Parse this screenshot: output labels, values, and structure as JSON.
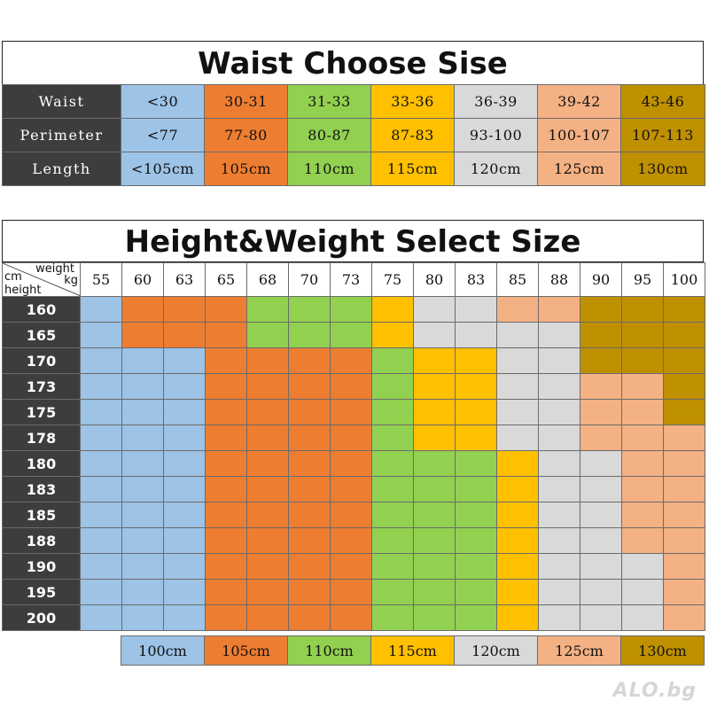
{
  "waist_section": {
    "title": "Waist Choose Sise",
    "rows": [
      {
        "label": "Waist",
        "values": [
          "<30",
          "30-31",
          "31-33",
          "33-36",
          "36-39",
          "39-42",
          "43-46"
        ]
      },
      {
        "label": "Perimeter",
        "values": [
          "<77",
          "77-80",
          "80-87",
          "87-83",
          "93-100",
          "100-107",
          "107-113"
        ]
      },
      {
        "label": "Length",
        "values": [
          "<105cm",
          "105cm",
          "110cm",
          "115cm",
          "120cm",
          "125cm",
          "130cm"
        ]
      }
    ],
    "column_colors": [
      "#9dc3e6",
      "#ed7d31",
      "#92d050",
      "#ffc000",
      "#d9d9d9",
      "#f4b183",
      "#bf9000"
    ]
  },
  "size_chart": {
    "title": "Height&Weight Select Size",
    "corner": {
      "weight_label": "weight",
      "kg_label": "kg",
      "cm_label": "cm",
      "height_label": "height"
    },
    "weights": [
      "55",
      "60",
      "63",
      "65",
      "68",
      "70",
      "73",
      "75",
      "80",
      "83",
      "85",
      "88",
      "90",
      "95",
      "100"
    ],
    "heights": [
      "160",
      "165",
      "170",
      "173",
      "175",
      "178",
      "180",
      "183",
      "185",
      "188",
      "190",
      "195",
      "200"
    ],
    "length_key": {
      "B": "100cm",
      "O": "105cm",
      "G": "110cm",
      "Y": "115cm",
      "W": "120cm",
      "P": "125cm",
      "K": "130cm"
    },
    "grid": [
      [
        "B",
        "O",
        "O",
        "O",
        "G",
        "G",
        "G",
        "Y",
        "W",
        "W",
        "P",
        "P",
        "K",
        "K",
        "K"
      ],
      [
        "B",
        "O",
        "O",
        "O",
        "G",
        "G",
        "G",
        "Y",
        "W",
        "W",
        "W",
        "W",
        "K",
        "K",
        "K"
      ],
      [
        "B",
        "B",
        "B",
        "O",
        "O",
        "O",
        "O",
        "G",
        "Y",
        "Y",
        "W",
        "W",
        "K",
        "K",
        "K"
      ],
      [
        "B",
        "B",
        "B",
        "O",
        "O",
        "O",
        "O",
        "G",
        "Y",
        "Y",
        "W",
        "W",
        "P",
        "P",
        "K"
      ],
      [
        "B",
        "B",
        "B",
        "O",
        "O",
        "O",
        "O",
        "G",
        "Y",
        "Y",
        "W",
        "W",
        "P",
        "P",
        "K"
      ],
      [
        "B",
        "B",
        "B",
        "O",
        "O",
        "O",
        "O",
        "G",
        "Y",
        "Y",
        "W",
        "W",
        "P",
        "P",
        "P"
      ],
      [
        "B",
        "B",
        "B",
        "O",
        "O",
        "O",
        "O",
        "G",
        "G",
        "G",
        "Y",
        "W",
        "W",
        "P",
        "P"
      ],
      [
        "B",
        "B",
        "B",
        "O",
        "O",
        "O",
        "O",
        "G",
        "G",
        "G",
        "Y",
        "W",
        "W",
        "P",
        "P"
      ],
      [
        "B",
        "B",
        "B",
        "O",
        "O",
        "O",
        "O",
        "G",
        "G",
        "G",
        "Y",
        "W",
        "W",
        "P",
        "P"
      ],
      [
        "B",
        "B",
        "B",
        "O",
        "O",
        "O",
        "O",
        "G",
        "G",
        "G",
        "Y",
        "W",
        "W",
        "P",
        "P"
      ],
      [
        "B",
        "B",
        "B",
        "O",
        "O",
        "O",
        "O",
        "G",
        "G",
        "G",
        "Y",
        "W",
        "W",
        "W",
        "P"
      ],
      [
        "B",
        "B",
        "B",
        "O",
        "O",
        "O",
        "O",
        "G",
        "G",
        "G",
        "Y",
        "W",
        "W",
        "W",
        "P"
      ],
      [
        "B",
        "B",
        "B",
        "O",
        "O",
        "O",
        "O",
        "G",
        "G",
        "G",
        "Y",
        "W",
        "W",
        "W",
        "P"
      ]
    ],
    "colors": {
      "B": "#9dc3e6",
      "O": "#ed7d31",
      "G": "#92d050",
      "Y": "#ffc000",
      "W": "#d9d9d9",
      "P": "#f4b183",
      "K": "#bf9000"
    },
    "legend": [
      {
        "key": "B",
        "label": "100cm"
      },
      {
        "key": "O",
        "label": "105cm"
      },
      {
        "key": "G",
        "label": "110cm"
      },
      {
        "key": "Y",
        "label": "115cm"
      },
      {
        "key": "W",
        "label": "120cm"
      },
      {
        "key": "P",
        "label": "125cm"
      },
      {
        "key": "K",
        "label": "130cm"
      }
    ]
  },
  "watermark": "ALO.bg"
}
